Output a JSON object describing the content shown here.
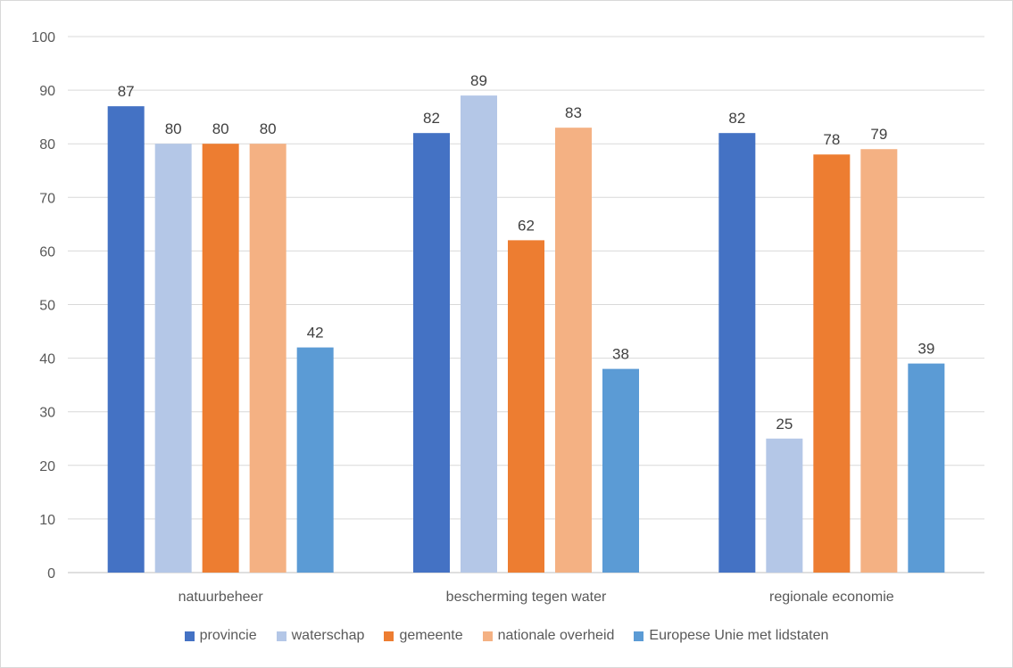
{
  "chart_data": {
    "type": "bar",
    "title": "",
    "xlabel": "",
    "ylabel": "",
    "ylim": [
      0,
      100
    ],
    "yticks": [
      0,
      10,
      20,
      30,
      40,
      50,
      60,
      70,
      80,
      90,
      100
    ],
    "grid": true,
    "legend_position": "bottom",
    "categories": [
      "natuurbeheer",
      "bescherming tegen water",
      "regionale economie"
    ],
    "series": [
      {
        "name": "provincie",
        "color": "#4472c4",
        "values": [
          87,
          82,
          82
        ],
        "labels": [
          "87",
          "82",
          "82"
        ]
      },
      {
        "name": "waterschap",
        "color": "#b4c7e7",
        "values": [
          80,
          89,
          25
        ],
        "labels": [
          "80",
          "89",
          "25"
        ]
      },
      {
        "name": "gemeente",
        "color": "#ed7d31",
        "values": [
          80,
          62,
          78
        ],
        "labels": [
          "80",
          "62",
          "78"
        ]
      },
      {
        "name": "nationale overheid",
        "color": "#f4b183",
        "values": [
          80,
          83,
          79
        ],
        "labels": [
          "80",
          "83",
          "79"
        ]
      },
      {
        "name": "Europese Unie met lidstaten",
        "color": "#5b9bd5",
        "values": [
          42,
          38,
          39
        ],
        "labels": [
          "42",
          "38",
          "39"
        ]
      }
    ]
  }
}
